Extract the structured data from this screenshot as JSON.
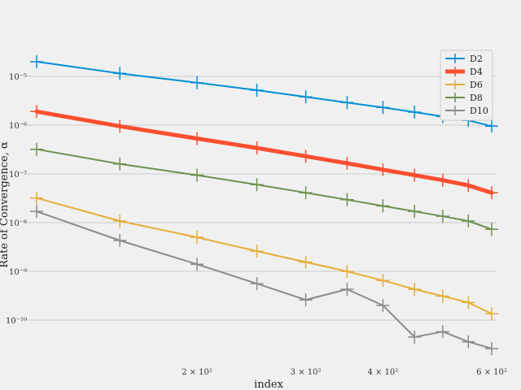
{
  "chart_data": {
    "type": "line",
    "title": "",
    "xlabel": "index",
    "ylabel": "Rate of Convergence, α",
    "xscale": "log",
    "yscale": "log",
    "xlim": [
      100,
      620
    ],
    "ylim": [
      4e-11,
      0.0001
    ],
    "grid": "horizontal",
    "legend_position": "top-right",
    "x_ticks": [
      {
        "value": 200,
        "label": "2 × 10²"
      },
      {
        "value": 300,
        "label": "3 × 10²"
      },
      {
        "value": 400,
        "label": "4 × 10²"
      },
      {
        "value": 600,
        "label": "6 × 10²"
      }
    ],
    "y_ticks": [
      {
        "value": 1e-05,
        "label": "10⁻⁵"
      },
      {
        "value": 1e-06,
        "label": "10⁻⁶"
      },
      {
        "value": 1e-07,
        "label": "10⁻⁷"
      },
      {
        "value": 1e-08,
        "label": "10⁻⁸"
      },
      {
        "value": 1e-09,
        "label": "10⁻⁹"
      },
      {
        "value": 1e-10,
        "label": "10⁻¹⁰"
      }
    ],
    "x": [
      110,
      150,
      200,
      250,
      300,
      350,
      400,
      450,
      500,
      550,
      600
    ],
    "series": [
      {
        "name": "D2",
        "color": "#008fd5",
        "linewidth": 2,
        "values": [
          2e-05,
          1.15e-05,
          7.4e-06,
          5.2e-06,
          3.8e-06,
          2.9e-06,
          2.3e-06,
          1.85e-06,
          1.5e-06,
          1.25e-06,
          9.5e-07
        ]
      },
      {
        "name": "D4",
        "color": "#fc4f30",
        "linewidth": 5,
        "values": [
          1.9e-06,
          9.5e-07,
          5.3e-07,
          3.4e-07,
          2.3e-07,
          1.65e-07,
          1.22e-07,
          9.4e-08,
          7.4e-08,
          5.8e-08,
          4.1e-08
        ]
      },
      {
        "name": "D6",
        "color": "#e5ae38",
        "linewidth": 2,
        "values": [
          3.2e-08,
          1.08e-08,
          5e-09,
          2.6e-09,
          1.55e-09,
          1e-09,
          6.5e-10,
          4.3e-10,
          3.1e-10,
          2.3e-10,
          1.35e-10
        ]
      },
      {
        "name": "D8",
        "color": "#6d904f",
        "linewidth": 2,
        "values": [
          3.2e-07,
          1.6e-07,
          9.4e-08,
          6e-08,
          4.1e-08,
          2.95e-08,
          2.2e-08,
          1.7e-08,
          1.35e-08,
          1.08e-08,
          7.3e-09
        ]
      },
      {
        "name": "D10",
        "color": "#8b8b8b",
        "linewidth": 2,
        "values": [
          1.7e-08,
          4.3e-09,
          1.4e-09,
          5.6e-10,
          2.6e-10,
          4.3e-10,
          2e-10,
          4.5e-11,
          5.8e-11,
          3.6e-11,
          2.6e-11
        ]
      }
    ]
  }
}
